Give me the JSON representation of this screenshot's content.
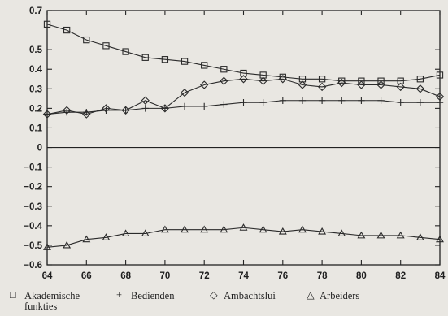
{
  "chart_data": {
    "type": "line",
    "x": [
      64,
      65,
      66,
      67,
      68,
      69,
      70,
      71,
      72,
      73,
      74,
      75,
      76,
      77,
      78,
      79,
      80,
      81,
      82,
      83,
      84
    ],
    "xticks": [
      "64",
      "66",
      "68",
      "70",
      "72",
      "74",
      "76",
      "78",
      "80",
      "82",
      "84"
    ],
    "yticks": [
      "0.7",
      "0.5",
      "0.4",
      "0.3",
      "0.2",
      "0.1",
      "0",
      "−0.1",
      "−0.2",
      "−0.3",
      "−0.4",
      "−0.5",
      "−0.6"
    ],
    "xlim": [
      64,
      84
    ],
    "ylim": [
      -0.6,
      0.7
    ],
    "grid": false,
    "legend_position": "bottom",
    "series": [
      {
        "name": "Akademische funkties",
        "legend_lines": [
          "Akademische",
          "funkties"
        ],
        "symbol": "□",
        "marker": "square",
        "values": [
          0.63,
          0.6,
          0.55,
          0.52,
          0.49,
          0.46,
          0.45,
          0.44,
          0.42,
          0.4,
          0.38,
          0.37,
          0.36,
          0.35,
          0.35,
          0.34,
          0.34,
          0.34,
          0.34,
          0.35,
          0.37
        ]
      },
      {
        "name": "Bedienden",
        "legend_lines": [
          "Bedienden"
        ],
        "symbol": "+",
        "marker": "plus",
        "values": [
          0.17,
          0.18,
          0.18,
          0.19,
          0.19,
          0.2,
          0.2,
          0.21,
          0.21,
          0.22,
          0.23,
          0.23,
          0.24,
          0.24,
          0.24,
          0.24,
          0.24,
          0.24,
          0.23,
          0.23,
          0.23
        ]
      },
      {
        "name": "Ambachtslui",
        "legend_lines": [
          "Ambachtslui"
        ],
        "symbol": "◇",
        "marker": "diamond",
        "values": [
          0.17,
          0.19,
          0.17,
          0.2,
          0.19,
          0.24,
          0.2,
          0.28,
          0.32,
          0.34,
          0.35,
          0.34,
          0.35,
          0.32,
          0.31,
          0.33,
          0.32,
          0.32,
          0.31,
          0.3,
          0.26
        ]
      },
      {
        "name": "Arbeiders",
        "legend_lines": [
          "Arbeiders"
        ],
        "symbol": "△",
        "marker": "triangle",
        "values": [
          -0.51,
          -0.5,
          -0.47,
          -0.46,
          -0.44,
          -0.44,
          -0.42,
          -0.42,
          -0.42,
          -0.42,
          -0.41,
          -0.42,
          -0.43,
          -0.42,
          -0.43,
          -0.44,
          -0.45,
          -0.45,
          -0.45,
          -0.46,
          -0.47
        ]
      }
    ]
  }
}
